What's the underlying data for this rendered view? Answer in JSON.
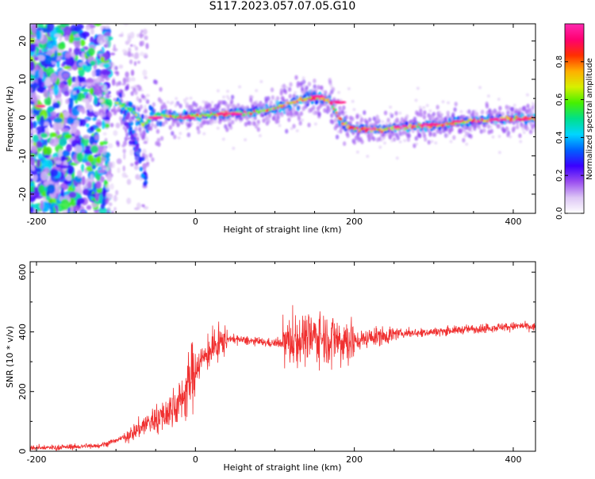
{
  "figure": {
    "title": "S117.2023.057.07.05.G10"
  },
  "chart_data": [
    {
      "type": "heatmap",
      "xlabel": "Height of straight line (km)",
      "ylabel": "Frequency (Hz)",
      "xlim": [
        -208,
        428
      ],
      "ylim": [
        -25,
        24.5
      ],
      "x_ticks": [
        -200,
        0,
        200,
        400
      ],
      "x_tick_labels": [
        "-200",
        "0",
        "200",
        "400"
      ],
      "y_ticks": [
        -20,
        -10,
        0,
        10,
        20
      ],
      "y_tick_labels": [
        "-20",
        "-10",
        "0",
        "10",
        "20"
      ],
      "colorbar": {
        "label": "Normalized spectral amplitude",
        "ticks": [
          0.0,
          0.2,
          0.4,
          0.6,
          0.8
        ],
        "tick_labels": [
          "0.0",
          "0.2",
          "0.4",
          "0.6",
          "0.8"
        ],
        "range": [
          0,
          1
        ],
        "colormap": [
          "#ffffff",
          "#ddc6f5",
          "#9a4df0",
          "#3a00ff",
          "#0060ff",
          "#00d6ff",
          "#00e08a",
          "#46f000",
          "#d8f000",
          "#ffae00",
          "#ff3000",
          "#ff0070",
          "#ff28b0"
        ]
      },
      "ridge": {
        "x": [
          -100,
          -80,
          -65,
          -50,
          -20,
          0,
          40,
          80,
          110,
          130,
          155,
          170,
          185,
          200,
          230,
          260,
          300,
          340,
          380,
          428
        ],
        "frequency": [
          4,
          2,
          -2,
          1,
          0,
          0.5,
          1,
          1.5,
          3,
          4.5,
          5.5,
          4,
          -1.5,
          -3,
          -3,
          -2.5,
          -2,
          -1,
          -0.5,
          0
        ]
      },
      "grid": false
    },
    {
      "type": "line",
      "xlabel": "Height of straight line (km)",
      "ylabel": "SNR (10 * v/v)",
      "xlim": [
        -208,
        428
      ],
      "ylim": [
        0,
        635
      ],
      "x_ticks": [
        -200,
        0,
        200,
        400
      ],
      "x_tick_labels": [
        "-200",
        "0",
        "200",
        "400"
      ],
      "y_ticks": [
        0,
        200,
        400,
        600
      ],
      "y_tick_labels": [
        "0",
        "200",
        "400",
        "600"
      ],
      "line_color": "#f03030",
      "series": [
        {
          "x": [
            -208,
            -180,
            -150,
            -120,
            -100,
            -80,
            -60,
            -40,
            -20,
            0,
            10,
            20,
            30,
            40,
            60,
            80,
            100,
            115,
            130,
            150,
            170,
            185,
            200,
            230,
            260,
            300,
            340,
            380,
            410,
            428
          ],
          "values": [
            12,
            12,
            15,
            20,
            35,
            60,
            95,
            120,
            160,
            280,
            310,
            340,
            360,
            378,
            372,
            366,
            362,
            363,
            375,
            385,
            380,
            375,
            370,
            385,
            395,
            400,
            408,
            415,
            420,
            415
          ]
        }
      ],
      "grid": false
    }
  ]
}
